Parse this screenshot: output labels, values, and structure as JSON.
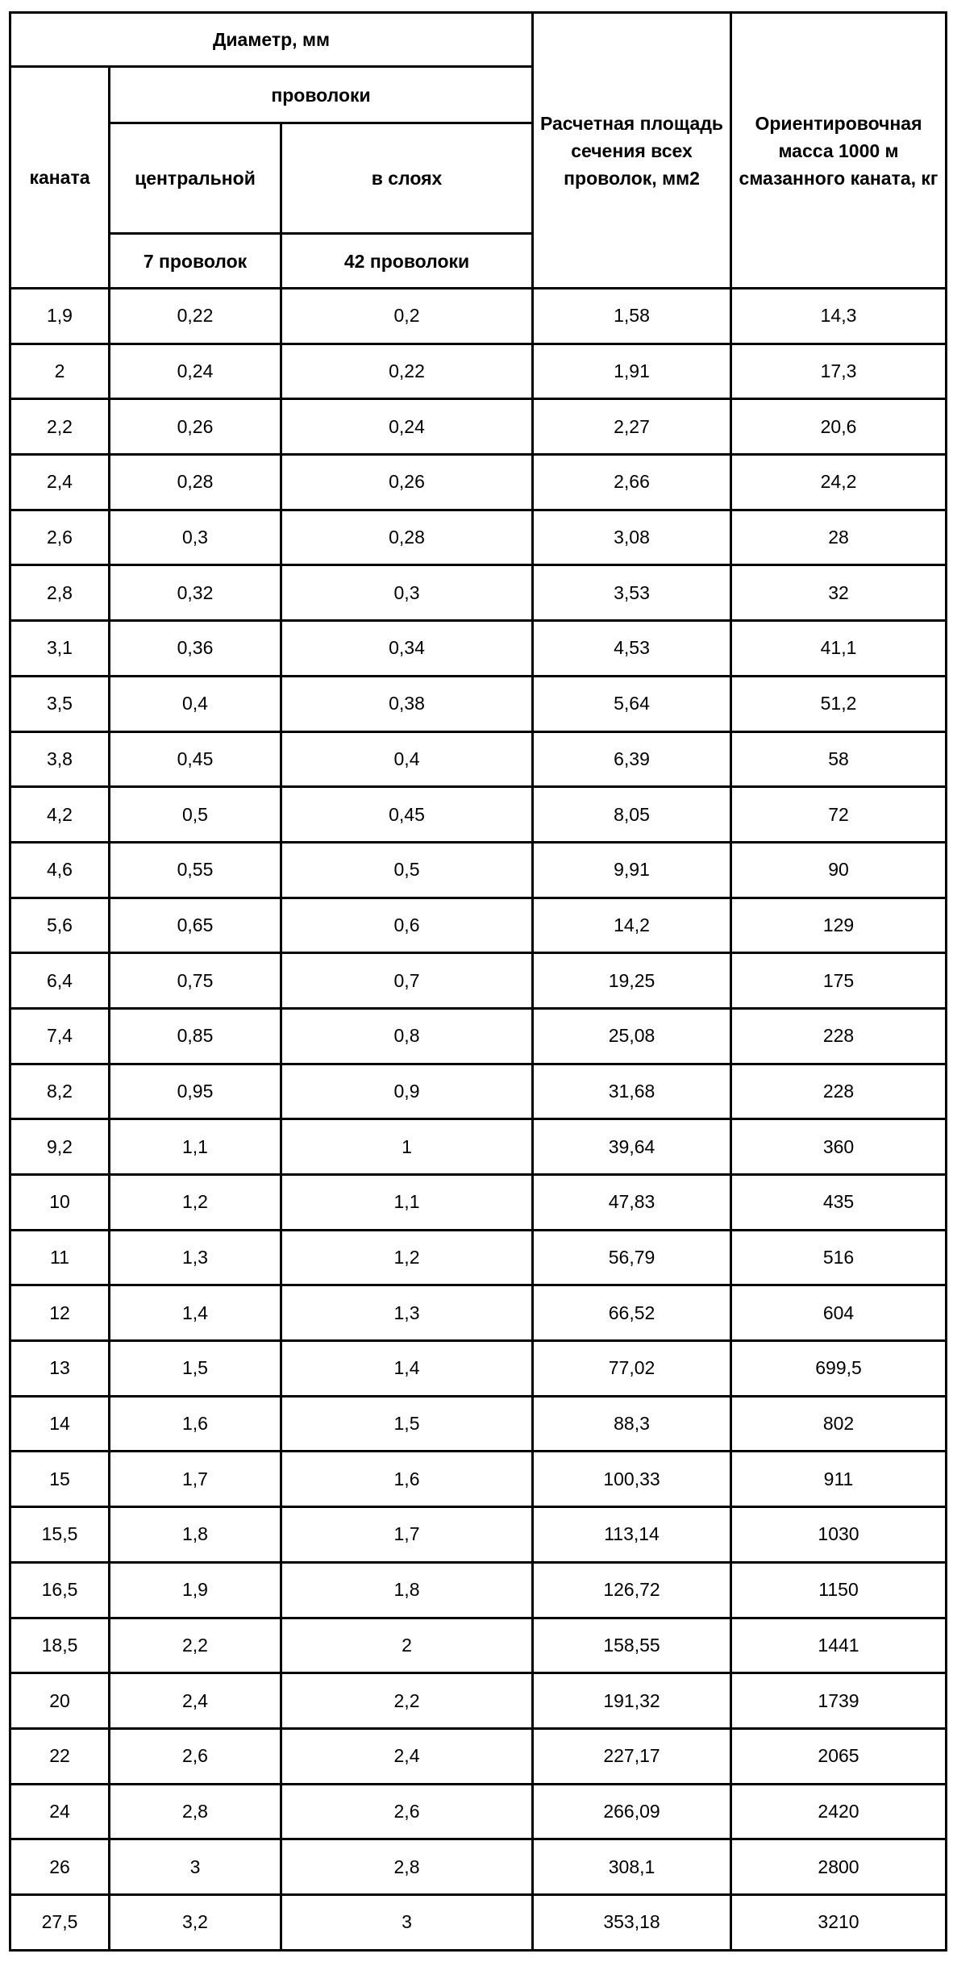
{
  "header": {
    "diameter": "Диаметр, мм",
    "rope": "каната",
    "wires": "проволоки",
    "central": "центральной",
    "layers": "в слоях",
    "central_count": "7 проволок",
    "layers_count": "42 проволоки",
    "area": "Расчетная площадь сечения всех проволок, мм2",
    "mass": "Ориентировочная масса 1000 м смазанного каната, кг"
  },
  "rows": [
    [
      "1,9",
      "0,22",
      "0,2",
      "1,58",
      "14,3"
    ],
    [
      "2",
      "0,24",
      "0,22",
      "1,91",
      "17,3"
    ],
    [
      "2,2",
      "0,26",
      "0,24",
      "2,27",
      "20,6"
    ],
    [
      "2,4",
      "0,28",
      "0,26",
      "2,66",
      "24,2"
    ],
    [
      "2,6",
      "0,3",
      "0,28",
      "3,08",
      "28"
    ],
    [
      "2,8",
      "0,32",
      "0,3",
      "3,53",
      "32"
    ],
    [
      "3,1",
      "0,36",
      "0,34",
      "4,53",
      "41,1"
    ],
    [
      "3,5",
      "0,4",
      "0,38",
      "5,64",
      "51,2"
    ],
    [
      "3,8",
      "0,45",
      "0,4",
      "6,39",
      "58"
    ],
    [
      "4,2",
      "0,5",
      "0,45",
      "8,05",
      "72"
    ],
    [
      "4,6",
      "0,55",
      "0,5",
      "9,91",
      "90"
    ],
    [
      "5,6",
      "0,65",
      "0,6",
      "14,2",
      "129"
    ],
    [
      "6,4",
      "0,75",
      "0,7",
      "19,25",
      "175"
    ],
    [
      "7,4",
      "0,85",
      "0,8",
      "25,08",
      "228"
    ],
    [
      "8,2",
      "0,95",
      "0,9",
      "31,68",
      "228"
    ],
    [
      "9,2",
      "1,1",
      "1",
      "39,64",
      "360"
    ],
    [
      "10",
      "1,2",
      "1,1",
      "47,83",
      "435"
    ],
    [
      "11",
      "1,3",
      "1,2",
      "56,79",
      "516"
    ],
    [
      "12",
      "1,4",
      "1,3",
      "66,52",
      "604"
    ],
    [
      "13",
      "1,5",
      "1,4",
      "77,02",
      "699,5"
    ],
    [
      "14",
      "1,6",
      "1,5",
      "88,3",
      "802"
    ],
    [
      "15",
      "1,7",
      "1,6",
      "100,33",
      "911"
    ],
    [
      "15,5",
      "1,8",
      "1,7",
      "113,14",
      "1030"
    ],
    [
      "16,5",
      "1,9",
      "1,8",
      "126,72",
      "1150"
    ],
    [
      "18,5",
      "2,2",
      "2",
      "158,55",
      "1441"
    ],
    [
      "20",
      "2,4",
      "2,2",
      "191,32",
      "1739"
    ],
    [
      "22",
      "2,6",
      "2,4",
      "227,17",
      "2065"
    ],
    [
      "24",
      "2,8",
      "2,6",
      "266,09",
      "2420"
    ],
    [
      "26",
      "3",
      "2,8",
      "308,1",
      "2800"
    ],
    [
      "27,5",
      "3,2",
      "3",
      "353,18",
      "3210"
    ]
  ]
}
